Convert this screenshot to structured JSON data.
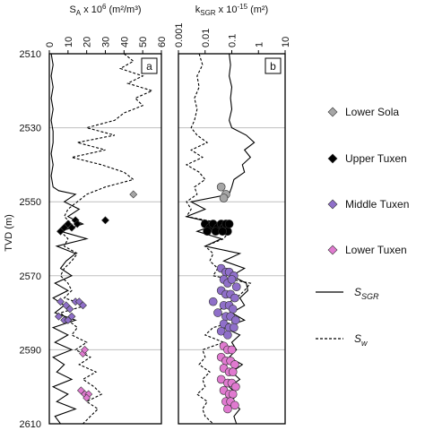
{
  "chart_data": {
    "type": "line",
    "y_axis": {
      "label": "TVD (m)",
      "range": [
        2510,
        2610
      ],
      "inverted": true,
      "ticks": [
        "2510",
        "2530",
        "2550",
        "2570",
        "2590",
        "2610"
      ],
      "tick_values": [
        2510,
        2530,
        2550,
        2570,
        2590,
        2610
      ],
      "grid": true
    },
    "panels": [
      {
        "id": "a",
        "panel_label": "a",
        "xlabel": "S_A x 10^6 (m²/m³)",
        "xlabel_parts": {
          "base": "S",
          "sub": "A",
          "mid": " x 10",
          "sup": "6",
          "tail": " (m²/m³)"
        },
        "scale": "linear",
        "xlim": [
          0,
          60
        ],
        "ticks": [
          "0",
          "10",
          "20",
          "30",
          "40",
          "50",
          "60"
        ],
        "tick_values": [
          0,
          10,
          20,
          30,
          40,
          50,
          60
        ],
        "series": [
          {
            "name": "S_SGR",
            "style": "solid",
            "depth": [
              2510,
              2513,
              2516,
              2519,
              2522,
              2525,
              2528,
              2531,
              2534,
              2537,
              2540,
              2543,
              2546,
              2547,
              2548,
              2550,
              2552,
              2554,
              2556,
              2558,
              2560,
              2562,
              2564,
              2566,
              2568,
              2570,
              2572,
              2574,
              2576,
              2578,
              2580,
              2582,
              2584,
              2586,
              2588,
              2590,
              2592,
              2594,
              2596,
              2598,
              2600,
              2602,
              2604,
              2606,
              2608,
              2610
            ],
            "values": [
              1,
              2,
              1,
              2,
              1,
              2,
              1,
              2,
              2,
              1,
              2,
              1,
              2,
              5,
              14,
              8,
              16,
              10,
              18,
              6,
              20,
              4,
              14,
              9,
              6,
              12,
              3,
              10,
              2,
              8,
              3,
              14,
              2,
              10,
              3,
              12,
              2,
              8,
              4,
              12,
              2,
              10,
              4,
              14,
              3,
              6
            ]
          },
          {
            "name": "S_w",
            "style": "dashed",
            "depth": [
              2510,
              2512,
              2514,
              2516,
              2518,
              2520,
              2522,
              2524,
              2526,
              2528,
              2530,
              2532,
              2534,
              2536,
              2538,
              2540,
              2542,
              2544,
              2546,
              2548,
              2550,
              2552,
              2554,
              2556,
              2558,
              2560,
              2562,
              2564,
              2566,
              2568,
              2570,
              2572,
              2574,
              2576,
              2578,
              2580,
              2582,
              2584,
              2586,
              2588,
              2590,
              2592,
              2594,
              2596,
              2598,
              2600,
              2602,
              2604,
              2606,
              2608,
              2610
            ],
            "values": [
              40,
              45,
              38,
              50,
              42,
              55,
              46,
              50,
              40,
              35,
              20,
              35,
              15,
              30,
              12,
              28,
              40,
              45,
              30,
              20,
              15,
              10,
              8,
              12,
              6,
              10,
              8,
              15,
              12,
              8,
              6,
              10,
              12,
              8,
              20,
              6,
              10,
              15,
              12,
              20,
              14,
              22,
              16,
              25,
              18,
              24,
              28,
              20,
              26,
              22,
              18
            ]
          }
        ],
        "markers": [
          {
            "group": "Lower Sola",
            "points": [
              [
                45,
                2548
              ]
            ]
          },
          {
            "group": "Upper Tuxen",
            "points": [
              [
                6,
                2558
              ],
              [
                8,
                2557
              ],
              [
                10,
                2556
              ],
              [
                12,
                2557
              ],
              [
                14,
                2555
              ],
              [
                15,
                2556
              ],
              [
                30,
                2555
              ]
            ]
          },
          {
            "group": "Middle Tuxen",
            "points": [
              [
                6,
                2577
              ],
              [
                9,
                2578
              ],
              [
                11,
                2579
              ],
              [
                14,
                2577
              ],
              [
                16,
                2577
              ],
              [
                18,
                2578
              ],
              [
                5,
                2581
              ],
              [
                8,
                2582
              ],
              [
                10,
                2582
              ],
              [
                12,
                2581
              ]
            ]
          },
          {
            "group": "Lower Tuxen",
            "points": [
              [
                18,
                2591
              ],
              [
                19,
                2590
              ],
              [
                17,
                2601
              ],
              [
                19,
                2602
              ],
              [
                21,
                2602
              ],
              [
                20,
                2603
              ]
            ]
          }
        ]
      },
      {
        "id": "b",
        "panel_label": "b",
        "xlabel": "k_SGR x 10^-15 (m²)",
        "xlabel_parts": {
          "base": "k",
          "sub": "SGR",
          "mid": " x 10",
          "sup": "-15",
          "tail": " (m²)"
        },
        "scale": "log",
        "xlim": [
          0.001,
          10
        ],
        "ticks": [
          "0.001",
          "0.01",
          "0.1",
          "1",
          "10"
        ],
        "tick_values": [
          0.001,
          0.01,
          0.1,
          1,
          10
        ],
        "series": [
          {
            "name": "S_SGR",
            "style": "solid",
            "depth": [
              2510,
              2513,
              2516,
              2519,
              2522,
              2525,
              2528,
              2530,
              2532,
              2534,
              2536,
              2538,
              2540,
              2542,
              2544,
              2546,
              2548,
              2550,
              2552,
              2554,
              2556,
              2558,
              2560,
              2562,
              2564,
              2566,
              2568,
              2570,
              2572,
              2574,
              2576,
              2578,
              2580,
              2582,
              2584,
              2586,
              2588,
              2590,
              2592,
              2594,
              2596,
              2598,
              2600,
              2602,
              2604,
              2606,
              2608,
              2610
            ],
            "values": [
              0.08,
              0.09,
              0.08,
              0.1,
              0.09,
              0.1,
              0.08,
              0.1,
              0.35,
              0.7,
              0.3,
              0.5,
              0.25,
              0.3,
              0.12,
              0.1,
              0.08,
              0.003,
              0.01,
              0.002,
              0.03,
              0.005,
              0.04,
              0.01,
              0.2,
              0.05,
              0.3,
              0.1,
              0.35,
              0.4,
              0.2,
              0.3,
              0.1,
              0.3,
              0.05,
              0.2,
              0.1,
              0.15,
              0.08,
              0.25,
              0.1,
              0.2,
              0.08,
              0.15,
              0.1,
              0.2,
              0.12,
              0.15
            ]
          },
          {
            "name": "S_w",
            "style": "dashed",
            "depth": [
              2510,
              2513,
              2516,
              2519,
              2522,
              2525,
              2528,
              2530,
              2532,
              2534,
              2536,
              2538,
              2540,
              2542,
              2544,
              2546,
              2548,
              2550,
              2552,
              2554,
              2556,
              2558,
              2560,
              2562,
              2564,
              2566,
              2568,
              2570,
              2572,
              2574,
              2576,
              2578,
              2580,
              2582,
              2584,
              2586,
              2588,
              2590,
              2592,
              2594,
              2596,
              2598,
              2600,
              2602,
              2604,
              2606,
              2608,
              2610
            ],
            "values": [
              0.006,
              0.008,
              0.005,
              0.006,
              0.004,
              0.005,
              0.004,
              0.003,
              0.005,
              0.012,
              0.003,
              0.008,
              0.002,
              0.006,
              0.01,
              0.004,
              0.005,
              0.002,
              0.003,
              0.002,
              0.06,
              0.08,
              0.05,
              0.01,
              0.02,
              0.015,
              0.03,
              0.02,
              0.5,
              0.3,
              0.15,
              0.05,
              0.03,
              0.2,
              0.02,
              0.01,
              0.05,
              0.008,
              0.01,
              0.006,
              0.015,
              0.008,
              0.01,
              0.005,
              0.012,
              0.008,
              0.01,
              0.02
            ]
          }
        ],
        "markers": [
          {
            "group": "Lower Sola",
            "points": [
              [
                0.04,
                2546
              ],
              [
                0.06,
                2548
              ],
              [
                0.05,
                2549
              ]
            ]
          },
          {
            "group": "Upper Tuxen",
            "points": [
              [
                0.01,
                2556
              ],
              [
                0.015,
                2557
              ],
              [
                0.02,
                2556
              ],
              [
                0.03,
                2557
              ],
              [
                0.04,
                2556
              ],
              [
                0.05,
                2557
              ],
              [
                0.06,
                2556
              ],
              [
                0.07,
                2558
              ],
              [
                0.08,
                2556
              ],
              [
                0.012,
                2558
              ],
              [
                0.025,
                2558
              ],
              [
                0.045,
                2558
              ]
            ]
          },
          {
            "group": "Middle Tuxen",
            "points": [
              [
                0.04,
                2568
              ],
              [
                0.06,
                2569
              ],
              [
                0.08,
                2569
              ],
              [
                0.12,
                2570
              ],
              [
                0.05,
                2571
              ],
              [
                0.07,
                2572
              ],
              [
                0.1,
                2571
              ],
              [
                0.15,
                2573
              ],
              [
                0.04,
                2574
              ],
              [
                0.06,
                2575
              ],
              [
                0.09,
                2575
              ],
              [
                0.13,
                2576
              ],
              [
                0.02,
                2577
              ],
              [
                0.05,
                2578
              ],
              [
                0.08,
                2578
              ],
              [
                0.11,
                2579
              ],
              [
                0.03,
                2580
              ],
              [
                0.06,
                2581
              ],
              [
                0.09,
                2581
              ],
              [
                0.14,
                2582
              ],
              [
                0.05,
                2583
              ],
              [
                0.08,
                2584
              ],
              [
                0.12,
                2584
              ],
              [
                0.04,
                2585
              ],
              [
                0.07,
                2586
              ]
            ]
          },
          {
            "group": "Lower Tuxen",
            "points": [
              [
                0.05,
                2589
              ],
              [
                0.07,
                2590
              ],
              [
                0.1,
                2590
              ],
              [
                0.04,
                2592
              ],
              [
                0.06,
                2593
              ],
              [
                0.09,
                2593
              ],
              [
                0.13,
                2594
              ],
              [
                0.05,
                2595
              ],
              [
                0.08,
                2596
              ],
              [
                0.11,
                2596
              ],
              [
                0.04,
                2598
              ],
              [
                0.07,
                2599
              ],
              [
                0.1,
                2599
              ],
              [
                0.14,
                2600
              ],
              [
                0.05,
                2601
              ],
              [
                0.08,
                2602
              ],
              [
                0.11,
                2602
              ],
              [
                0.06,
                2604
              ],
              [
                0.09,
                2604
              ],
              [
                0.13,
                2605
              ],
              [
                0.07,
                2606
              ]
            ]
          }
        ]
      }
    ],
    "legend": {
      "placement": "right",
      "marker_entries": [
        {
          "name": "Lower Sola",
          "shape": "diamond",
          "color": "#a6a6a6"
        },
        {
          "name": "Upper Tuxen",
          "shape": "diamond",
          "color": "#000000"
        },
        {
          "name": "Middle Tuxen",
          "shape": "diamond",
          "color": "#8f6fc9"
        },
        {
          "name": "Lower Tuxen",
          "shape": "diamond",
          "color": "#e07ad0"
        }
      ],
      "line_entries": [
        {
          "name": "S_SGR",
          "label_parts": {
            "base": "S",
            "sub": "SGR"
          },
          "style": "solid"
        },
        {
          "name": "S_w",
          "label_parts": {
            "base": "S",
            "sub": "w"
          },
          "style": "dashed"
        }
      ]
    },
    "colors": {
      "lower_sola": "#a6a6a6",
      "upper_tuxen": "#000000",
      "middle_tuxen": "#8f6fc9",
      "lower_tuxen": "#e07ad0",
      "grid": "#bfbfbf",
      "line": "#000000"
    }
  }
}
